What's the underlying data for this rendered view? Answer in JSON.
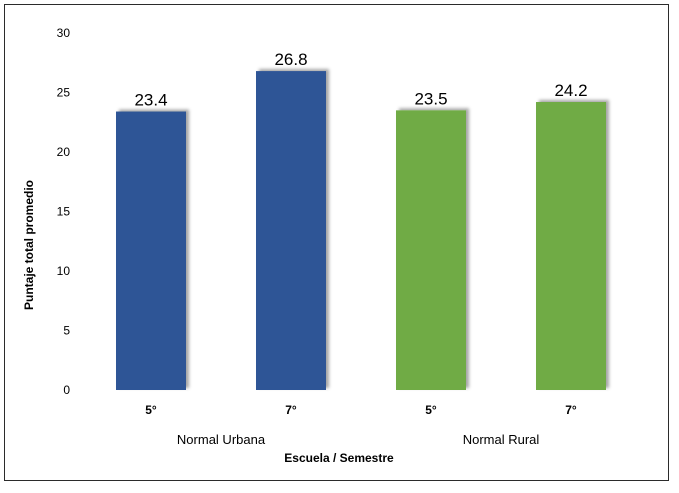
{
  "chart_data": {
    "type": "bar",
    "xlabel": "Escuela / Semestre",
    "ylabel": "Puntaje total promedio",
    "ylim": [
      0,
      30
    ],
    "yticks": [
      0,
      5,
      10,
      15,
      20,
      25,
      30
    ],
    "grid": false,
    "legend": "none",
    "groups": [
      {
        "label": "Normal Urbana",
        "color": "#2E5596",
        "bars": [
          {
            "category": "5°",
            "value": 23.4
          },
          {
            "category": "7°",
            "value": 26.8
          }
        ]
      },
      {
        "label": "Normal Rural",
        "color": "#6FAB45",
        "bars": [
          {
            "category": "5°",
            "value": 23.5
          },
          {
            "category": "7°",
            "value": 24.2
          }
        ]
      }
    ]
  }
}
